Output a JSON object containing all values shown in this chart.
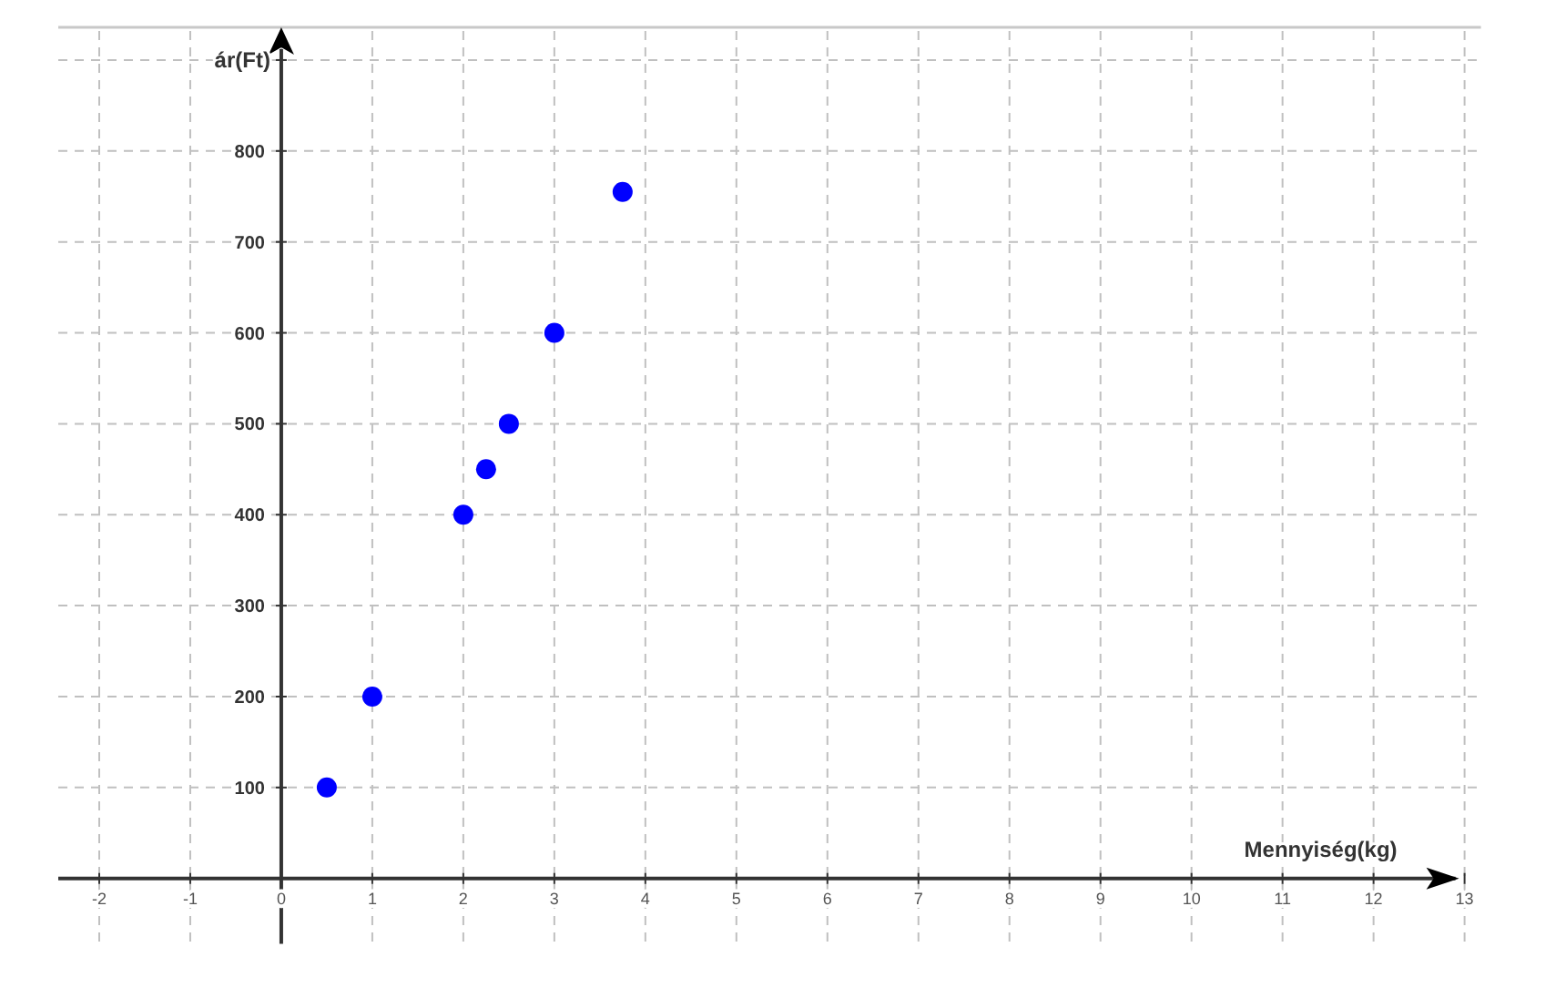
{
  "chart_data": {
    "type": "scatter",
    "xlabel": "Mennyiség(kg)",
    "ylabel": "ár(Ft)",
    "x": [
      0.5,
      1,
      2,
      2.25,
      2.5,
      3,
      3.75
    ],
    "series": [
      {
        "color": "#0000ff",
        "values": [
          100,
          200,
          400,
          450,
          500,
          600,
          755
        ]
      }
    ],
    "xlim": [
      -2.45,
      13.18
    ],
    "ylim": [
      -72,
      936
    ],
    "xticks": [
      -2,
      -1,
      0,
      1,
      2,
      3,
      4,
      5,
      6,
      7,
      8,
      9,
      10,
      11,
      12,
      13
    ],
    "yticks": [
      100,
      200,
      300,
      400,
      500,
      600,
      700,
      800,
      {
        "value": 900,
        "label": null
      }
    ],
    "grid": true,
    "marker": "circle"
  }
}
